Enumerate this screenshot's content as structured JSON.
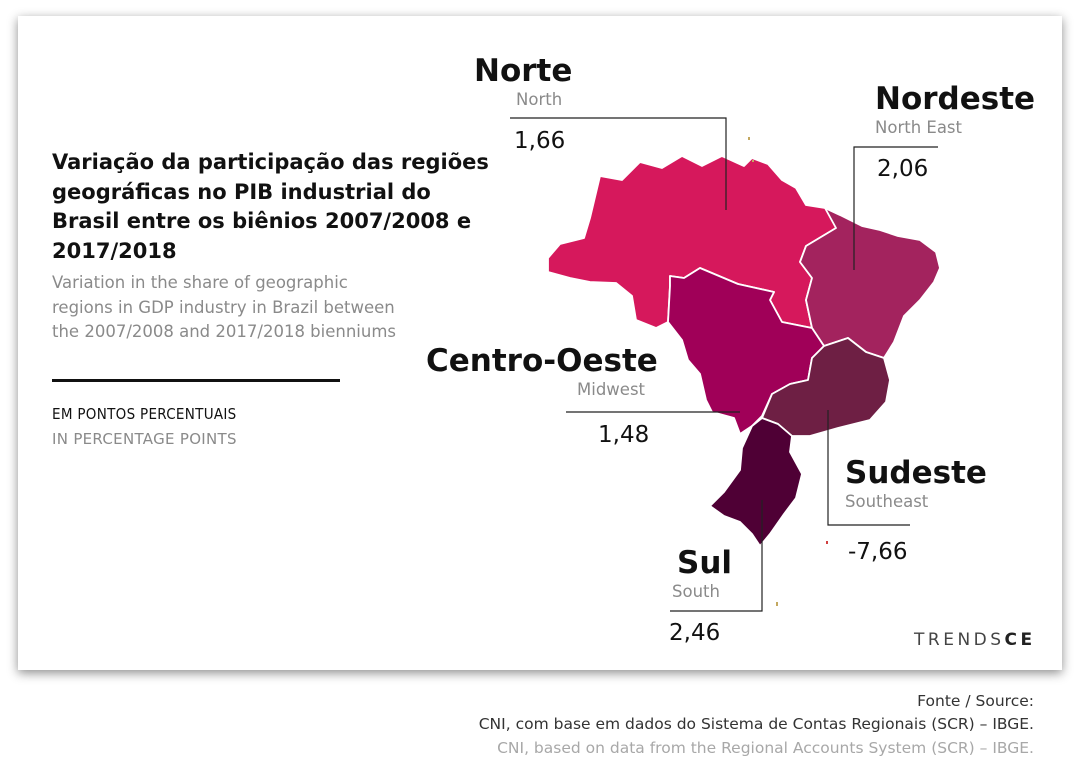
{
  "title": "Variação da participação das regiões geográficas no PIB industrial do Brasil entre os biênios 2007/2008 e 2017/2018",
  "subtitle": "Variation in the share of geographic regions in GDP industry in Brazil between the 2007/2008 and 2017/2018 bienniums",
  "unit": {
    "pt": "EM PONTOS PERCENTUAIS",
    "en": "IN PERCENTAGE POINTS"
  },
  "regions": [
    {
      "name": "Norte",
      "subtitle": "North",
      "value": "1,66",
      "color": "#d6185c"
    },
    {
      "name": "Nordeste",
      "subtitle": "North East",
      "value": "2,06",
      "color": "#a3235e"
    },
    {
      "name": "Centro-Oeste",
      "subtitle": "Midwest",
      "value": "1,48",
      "color": "#a00058"
    },
    {
      "name": "Sudeste",
      "subtitle": "Southeast",
      "value": "-7,66",
      "color": "#6e1f44"
    },
    {
      "name": "Sul",
      "subtitle": "South",
      "value": "2,46",
      "color": "#4f0035"
    }
  ],
  "brand": {
    "prefix": "TRENDS",
    "suffix": "CE"
  },
  "source": {
    "label": "Fonte / Source:",
    "pt": "CNI, com base em dados do Sistema de Contas Regionais (SCR) – IBGE.",
    "en": "CNI, based on data from the Regional Accounts System (SCR) – IBGE."
  }
}
